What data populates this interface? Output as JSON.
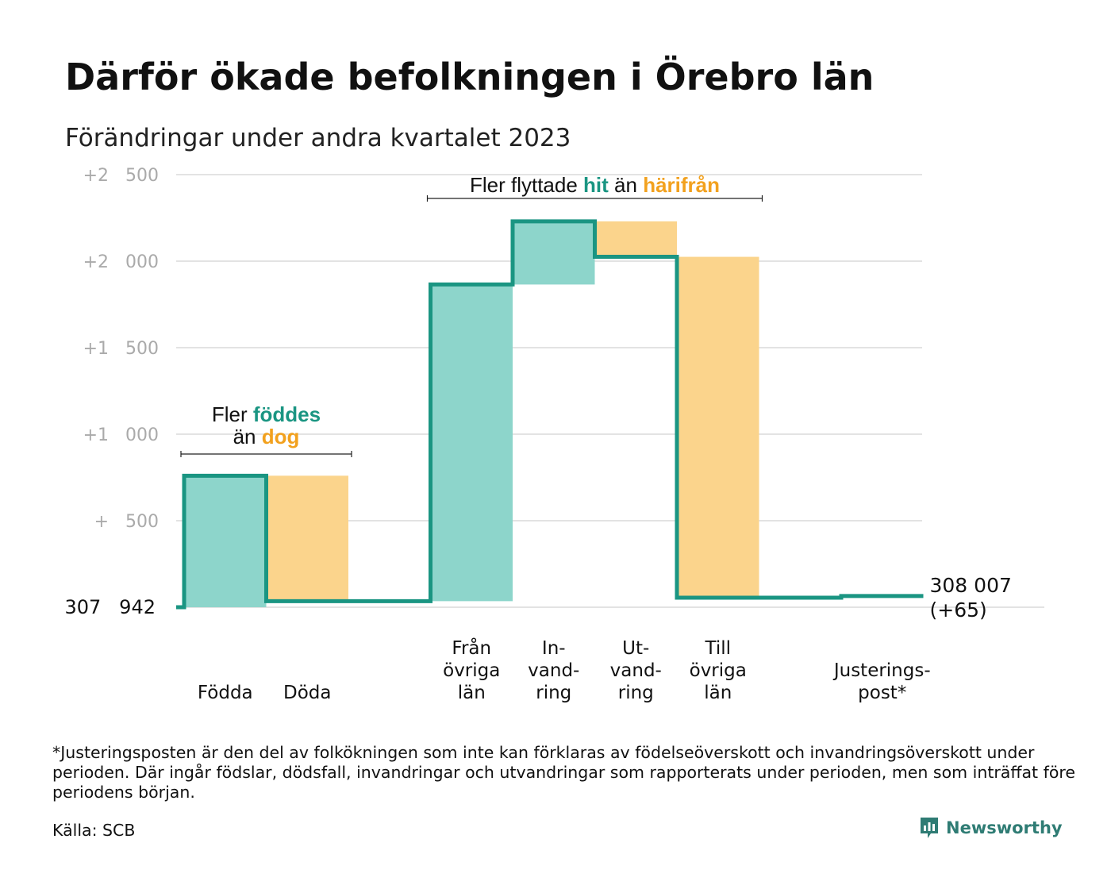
{
  "title": "Därför ökade befolkningen i Örebro län",
  "subtitle": "Förändringar under andra kvartalet 2023",
  "footnote": "*Justeringsposten är den del av folkökningen som inte kan förklaras av födelseöverskott och invandringsöverskott under perioden. Där ingår födslar, dödsfall, invandringar och utvandringar som rapporterats under perioden, men som inträffat före periodens början.",
  "source": "Källa: SCB",
  "brand": "Newsworthy",
  "colors": {
    "increase": "#8dd5cb",
    "decrease": "#fbd48c",
    "line": "#1a9582",
    "highlight_increase": "#1a9582",
    "highlight_decrease": "#f2a11e",
    "grid": "#e3e3e3",
    "tick": "#aaaaaa",
    "brand": "#2f7c74"
  },
  "chart_data": {
    "type": "waterfall",
    "baseline_label": "307   942",
    "end_label_lines": [
      "308 007",
      "(+65)"
    ],
    "y_ticks": [
      {
        "value": 500,
        "label": "+   500"
      },
      {
        "value": 1000,
        "label": "+1   000"
      },
      {
        "value": 1500,
        "label": "+1   500"
      },
      {
        "value": 2000,
        "label": "+2   000"
      },
      {
        "value": 2500,
        "label": "+2   500"
      }
    ],
    "ylim": [
      0,
      2500
    ],
    "steps": [
      {
        "label_lines": [
          "Födda"
        ],
        "value": 760,
        "kind": "increase"
      },
      {
        "label_lines": [
          "Döda"
        ],
        "value": -725,
        "kind": "decrease"
      },
      {
        "label_lines": [],
        "value": 0,
        "kind": "gap"
      },
      {
        "label_lines": [
          "Från",
          "övriga",
          "län"
        ],
        "value": 1830,
        "kind": "increase"
      },
      {
        "label_lines": [
          "In-",
          "vand-",
          "ring"
        ],
        "value": 365,
        "kind": "increase"
      },
      {
        "label_lines": [
          "Ut-",
          "vand-",
          "ring"
        ],
        "value": -205,
        "kind": "decrease"
      },
      {
        "label_lines": [
          "Till",
          "övriga",
          "län"
        ],
        "value": -1970,
        "kind": "decrease"
      },
      {
        "label_lines": [],
        "value": 0,
        "kind": "gap"
      },
      {
        "label_lines": [
          "Justerings-",
          "post*"
        ],
        "value": 10,
        "kind": "increase"
      }
    ],
    "annotations": [
      {
        "id": "births",
        "spans": [
          0,
          1
        ],
        "lines": [
          [
            {
              "text": "Fler ",
              "style": "plain"
            },
            {
              "text": "föddes",
              "style": "increase"
            }
          ],
          [
            {
              "text": "än ",
              "style": "plain"
            },
            {
              "text": "dog",
              "style": "decrease"
            }
          ]
        ]
      },
      {
        "id": "migration",
        "spans": [
          3,
          6
        ],
        "lines": [
          [
            {
              "text": "Fler flyttade ",
              "style": "plain"
            },
            {
              "text": "hit",
              "style": "increase"
            },
            {
              "text": " än ",
              "style": "plain"
            },
            {
              "text": "härifrån",
              "style": "decrease"
            }
          ]
        ]
      }
    ]
  }
}
